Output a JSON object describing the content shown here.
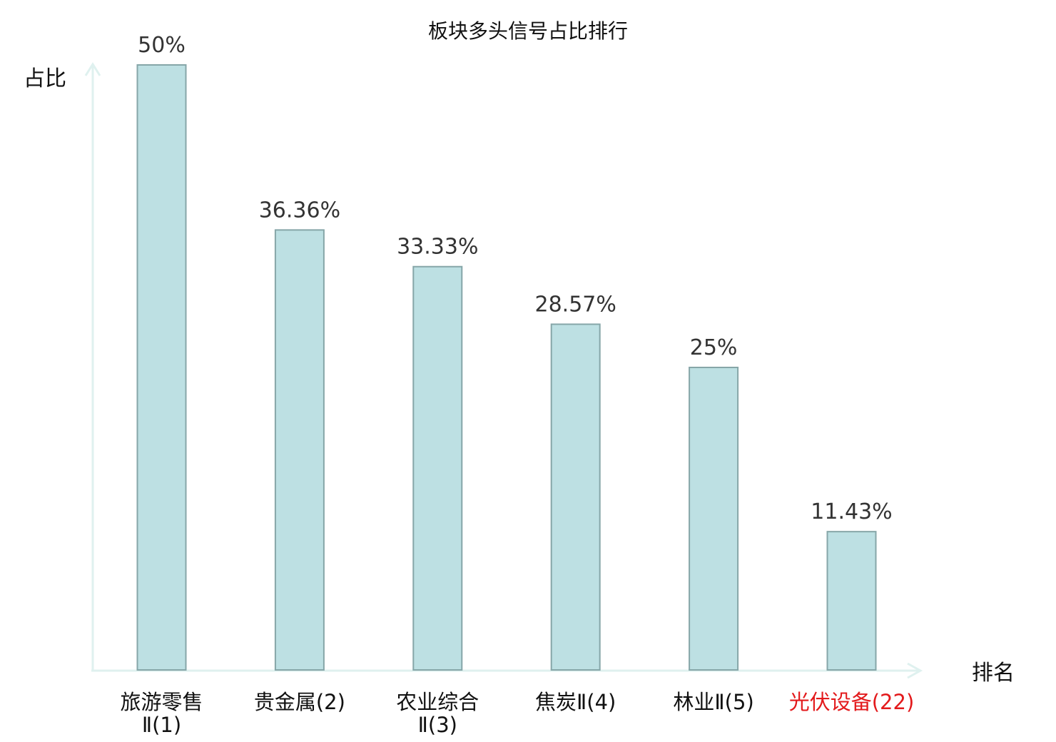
{
  "chart_data": {
    "type": "bar",
    "title": "板块多头信号占比排行",
    "ylabel": "占比",
    "xlabel": "排名",
    "ylim": [
      0,
      50
    ],
    "grid": false,
    "legend": "none",
    "categories": [
      [
        "旅游零售",
        "Ⅱ(1)"
      ],
      [
        "贵金属(2)"
      ],
      [
        "农业综合",
        "Ⅱ(3)"
      ],
      [
        "焦炭Ⅱ(4)"
      ],
      [
        "林业Ⅱ(5)"
      ],
      [
        "光伏设备(22)"
      ]
    ],
    "values": [
      50,
      36.36,
      33.33,
      28.57,
      25,
      11.43
    ],
    "value_labels": [
      "50%",
      "36.36%",
      "33.33%",
      "28.57%",
      "25%",
      "11.43%"
    ],
    "highlight_index": 5
  },
  "colors": {
    "bar_fill": "#bde0e3",
    "bar_stroke": "#86a6a8",
    "axis": "#dff1ef",
    "highlight_text": "#e31a1c",
    "value_text": "#333333"
  }
}
